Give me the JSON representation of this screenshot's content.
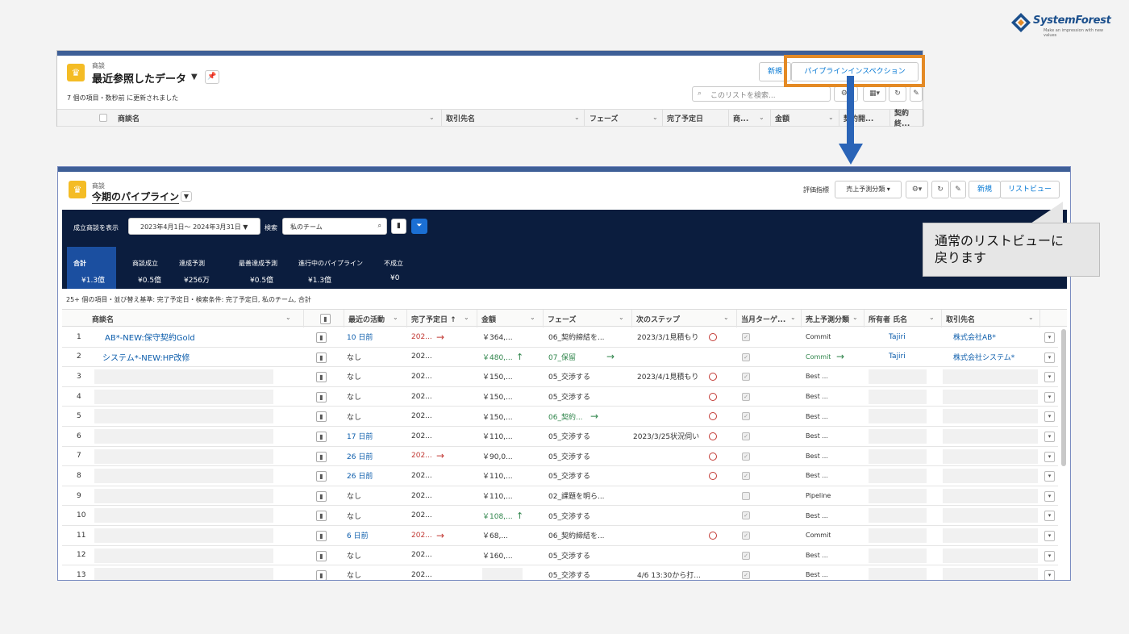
{
  "brand": {
    "name": "SystemForest",
    "tagline": "Make an impression with new values"
  },
  "panel1": {
    "object_label": "商談",
    "title": "最近参照したデータ",
    "title_caret": "▼",
    "status": "7 個の項目・数秒前 に更新されました",
    "new_label": "新規",
    "inspection_label": "パイプラインインスペクション",
    "search_placeholder": "このリストを検索...",
    "columns": [
      "商談名",
      "取引先名",
      "フェーズ",
      "完了予定日",
      "商...",
      "金額",
      "契約開...",
      "契約終..."
    ]
  },
  "panel2": {
    "object_label": "商談",
    "title": "今期のパイプライン",
    "metric_label": "評価指標",
    "metric_value": "売上予測分類",
    "new_label": "新規",
    "listview_label": "リストビュー",
    "filter_label": "成立商談を表示",
    "date_range": "2023年4月1日～ 2024年3月31日 ▼",
    "search_label": "検索",
    "search_value": "私のチーム",
    "kpis": [
      {
        "label": "合計",
        "value": "¥1.3億"
      },
      {
        "label": "商談成立",
        "value": "¥0.5億"
      },
      {
        "label": "達成予測",
        "value": "¥256万"
      },
      {
        "label": "最善達成予測",
        "value": "¥0.5億"
      },
      {
        "label": "進行中のパイプライン",
        "value": "¥1.3億"
      },
      {
        "label": "不成立",
        "value": "¥0"
      }
    ],
    "status": "25+ 個の項目・並び替え基準: 完了予定日・検索条件: 完了予定日, 私のチーム, 合計",
    "columns": [
      "商談名",
      "",
      "最近の活動",
      "完了予定日 ↑",
      "金額",
      "フェーズ",
      "次のステップ",
      "",
      "当月ターゲ...",
      "売上予測分類",
      "所有者 氏名",
      "取引先名"
    ],
    "rows": [
      {
        "n": "1",
        "name": "AB*-NEW:保守契約Gold",
        "act": "10 日前",
        "date": "202...",
        "date_arrow": "→",
        "amount": "￥364,...",
        "amt_arrow": "",
        "phase": "06_契約締結を...",
        "phase_arrow": "",
        "next": "2023/3/1見積もり",
        "clock": true,
        "chk": "✓",
        "forecast": "Commit",
        "fc_arrow": "",
        "owner": "Tajiri",
        "account": "株式会社AB*",
        "red": true,
        "green": false
      },
      {
        "n": "2",
        "name": "システム*-NEW:HP改修",
        "act": "なし",
        "date": "202...",
        "date_arrow": "",
        "amount": "￥480,...",
        "amt_arrow": "↑",
        "phase": "07_保留",
        "phase_arrow": "→",
        "next": "",
        "clock": false,
        "chk": "✓",
        "forecast": "Commit",
        "fc_arrow": "→",
        "owner": "Tajiri",
        "account": "株式会社システム*",
        "red": false,
        "green": true
      },
      {
        "n": "3",
        "name": "",
        "act": "なし",
        "date": "202...",
        "date_arrow": "",
        "amount": "￥150,...",
        "amt_arrow": "",
        "phase": "05_交渉する",
        "phase_arrow": "",
        "next": "2023/4/1見積もり",
        "clock": true,
        "chk": "✓",
        "forecast": "Best ...",
        "fc_arrow": "",
        "owner": "",
        "account": "",
        "red": false,
        "green": false
      },
      {
        "n": "4",
        "name": "",
        "act": "なし",
        "date": "202...",
        "date_arrow": "",
        "amount": "￥150,...",
        "amt_arrow": "",
        "phase": "05_交渉する",
        "phase_arrow": "",
        "next": "",
        "clock": true,
        "chk": "✓",
        "forecast": "Best ...",
        "fc_arrow": "",
        "owner": "",
        "account": "",
        "red": false,
        "green": false
      },
      {
        "n": "5",
        "name": "",
        "act": "なし",
        "date": "202...",
        "date_arrow": "",
        "amount": "￥150,...",
        "amt_arrow": "",
        "phase": "06_契約...",
        "phase_arrow": "→",
        "next": "",
        "clock": true,
        "chk": "✓",
        "forecast": "Best ...",
        "fc_arrow": "",
        "owner": "",
        "account": "",
        "red": false,
        "green": false,
        "phase_green": true
      },
      {
        "n": "6",
        "name": "",
        "act": "17 日前",
        "date": "202...",
        "date_arrow": "",
        "amount": "￥110,...",
        "amt_arrow": "",
        "phase": "05_交渉する",
        "phase_arrow": "",
        "next": "2023/3/25状況伺い",
        "clock": true,
        "chk": "✓",
        "forecast": "Best ...",
        "fc_arrow": "",
        "owner": "",
        "account": "",
        "red": false,
        "green": false
      },
      {
        "n": "7",
        "name": "",
        "act": "26 日前",
        "date": "202...",
        "date_arrow": "→",
        "amount": "￥90,0...",
        "amt_arrow": "",
        "phase": "05_交渉する",
        "phase_arrow": "",
        "next": "",
        "clock": true,
        "chk": "✓",
        "forecast": "Best ...",
        "fc_arrow": "",
        "owner": "",
        "account": "",
        "red": true,
        "green": false
      },
      {
        "n": "8",
        "name": "",
        "act": "26 日前",
        "date": "202...",
        "date_arrow": "",
        "amount": "￥110,...",
        "amt_arrow": "",
        "phase": "05_交渉する",
        "phase_arrow": "",
        "next": "",
        "clock": true,
        "chk": "✓",
        "forecast": "Best ...",
        "fc_arrow": "",
        "owner": "",
        "account": "",
        "red": false,
        "green": false
      },
      {
        "n": "9",
        "name": "",
        "act": "なし",
        "date": "202...",
        "date_arrow": "",
        "amount": "￥110,...",
        "amt_arrow": "",
        "phase": "02_課題を明ら...",
        "phase_arrow": "",
        "next": "",
        "clock": false,
        "chk": "",
        "forecast": "Pipeline",
        "fc_arrow": "",
        "owner": "",
        "account": "",
        "red": false,
        "green": false
      },
      {
        "n": "10",
        "name": "",
        "act": "なし",
        "date": "202...",
        "date_arrow": "",
        "amount": "￥108,...",
        "amt_arrow": "↑",
        "phase": "05_交渉する",
        "phase_arrow": "",
        "next": "",
        "clock": false,
        "chk": "✓",
        "forecast": "Best ...",
        "fc_arrow": "",
        "owner": "",
        "account": "",
        "red": false,
        "green": true
      },
      {
        "n": "11",
        "name": "",
        "act": "6 日前",
        "date": "202...",
        "date_arrow": "→",
        "amount": "￥68,...",
        "amt_arrow": "",
        "phase": "06_契約締結を...",
        "phase_arrow": "",
        "next": "",
        "clock": true,
        "chk": "✓",
        "forecast": "Commit",
        "fc_arrow": "",
        "owner": "",
        "account": "",
        "red": true,
        "green": false
      },
      {
        "n": "12",
        "name": "",
        "act": "なし",
        "date": "202...",
        "date_arrow": "",
        "amount": "￥160,...",
        "amt_arrow": "",
        "phase": "05_交渉する",
        "phase_arrow": "",
        "next": "",
        "clock": false,
        "chk": "✓",
        "forecast": "Best ...",
        "fc_arrow": "",
        "owner": "",
        "account": "",
        "red": false,
        "green": false
      },
      {
        "n": "13",
        "name": "",
        "act": "なし",
        "date": "202...",
        "date_arrow": "",
        "amount": "",
        "amt_arrow": "",
        "phase": "05_交渉する",
        "phase_arrow": "",
        "next": "4/6 13:30から打...",
        "clock": false,
        "chk": "✓",
        "forecast": "Best ...",
        "fc_arrow": "",
        "owner": "",
        "account": "",
        "red": false,
        "green": false
      }
    ]
  },
  "callout": {
    "line1": "通常のリストビューに",
    "line2": "戻ります"
  },
  "icons": {
    "bookmark": "bookmark-icon",
    "clock": "clock-icon",
    "gear": "gear-icon",
    "refresh": "refresh-icon",
    "pencil": "pencil-icon",
    "search": "search-icon",
    "filter": "filter-icon",
    "crown": "crown-icon",
    "pin": "pin-icon"
  },
  "colors": {
    "accent": "#0176d3",
    "orange": "#e48a25",
    "arrow": "#2a64b7",
    "dark": "#0b1d3e"
  }
}
